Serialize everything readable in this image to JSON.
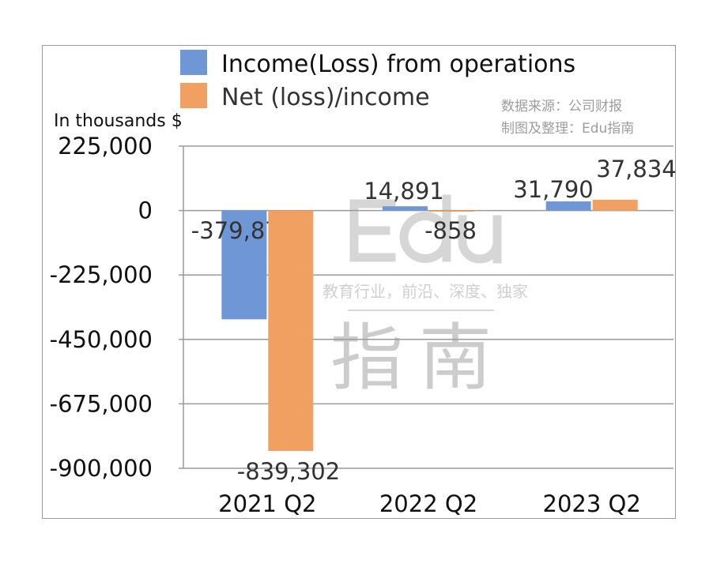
{
  "chart_data": {
    "type": "bar",
    "title": "",
    "ylabel": "In thousands $",
    "xlabel": "",
    "categories": [
      "2021 Q2",
      "2022 Q2",
      "2023 Q2"
    ],
    "series": [
      {
        "name": "Income(Loss) from operations",
        "color": "#6f97d6",
        "values": [
          -379874,
          14891,
          31790
        ],
        "labels": [
          "-379,874",
          "14,891",
          "31,790"
        ]
      },
      {
        "name": "Net (loss)/income",
        "color": "#f2a062",
        "values": [
          -839302,
          -858,
          37834
        ],
        "labels": [
          "-839,302",
          "-858",
          "37,834"
        ]
      }
    ],
    "ylim": [
      -900000,
      225000
    ],
    "yticks": [
      225000,
      0,
      -225000,
      -450000,
      -675000,
      -900000
    ],
    "ytick_labels": [
      "225,000",
      "0",
      "-225,000",
      "-450,000",
      "-675,000",
      "-900,000"
    ],
    "grid": true,
    "legend": "top-left"
  },
  "source_note": [
    "数据来源：公司财报",
    "制图及整理：Edu指南"
  ],
  "watermark": {
    "big": "Edu",
    "slogan": "教育行业，前沿、深度、独家",
    "cn": "指南"
  }
}
